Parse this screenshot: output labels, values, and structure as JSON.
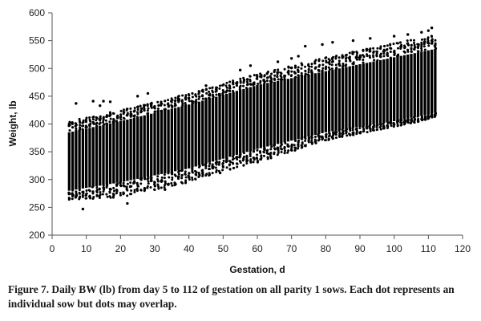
{
  "chart_data": {
    "type": "scatter",
    "title": "",
    "xlabel": "Gestation, d",
    "ylabel": "Weight, lb",
    "xlim": [
      0,
      120
    ],
    "ylim": [
      200,
      600
    ],
    "x_ticks": [
      0,
      10,
      20,
      30,
      40,
      50,
      60,
      70,
      80,
      90,
      100,
      110,
      120
    ],
    "y_ticks": [
      200,
      250,
      300,
      350,
      400,
      450,
      500,
      550,
      600
    ],
    "grid": false,
    "legend": "none",
    "marker_color": "#000000",
    "x_range_of_data": [
      5,
      112
    ],
    "band_envelope": {
      "x": [
        5,
        20,
        40,
        60,
        80,
        100,
        112
      ],
      "dense_low": [
        280,
        295,
        320,
        355,
        385,
        405,
        420
      ],
      "dense_high": [
        385,
        405,
        435,
        470,
        495,
        520,
        535
      ],
      "outer_low": [
        262,
        268,
        295,
        330,
        370,
        395,
        410
      ],
      "outer_high": [
        405,
        425,
        455,
        490,
        520,
        545,
        560
      ]
    },
    "outlier_points": [
      {
        "x": 7,
        "y": 437
      },
      {
        "x": 9,
        "y": 247
      },
      {
        "x": 12,
        "y": 441
      },
      {
        "x": 14,
        "y": 433
      },
      {
        "x": 15,
        "y": 441
      },
      {
        "x": 17,
        "y": 440
      },
      {
        "x": 22,
        "y": 257
      },
      {
        "x": 25,
        "y": 450
      },
      {
        "x": 28,
        "y": 455
      },
      {
        "x": 33,
        "y": 282
      },
      {
        "x": 45,
        "y": 469
      },
      {
        "x": 55,
        "y": 497
      },
      {
        "x": 58,
        "y": 505
      },
      {
        "x": 66,
        "y": 512
      },
      {
        "x": 70,
        "y": 518
      },
      {
        "x": 72,
        "y": 522
      },
      {
        "x": 74,
        "y": 540
      },
      {
        "x": 79,
        "y": 543
      },
      {
        "x": 82,
        "y": 547
      },
      {
        "x": 88,
        "y": 550
      },
      {
        "x": 93,
        "y": 554
      },
      {
        "x": 100,
        "y": 558
      },
      {
        "x": 104,
        "y": 561
      },
      {
        "x": 108,
        "y": 565
      },
      {
        "x": 110,
        "y": 568
      },
      {
        "x": 111,
        "y": 573
      }
    ]
  },
  "caption": "Figure 7. Daily BW (lb) from day 5 to 112 of gestation on all parity 1 sows. Each dot represents an individual sow but dots may overlap."
}
